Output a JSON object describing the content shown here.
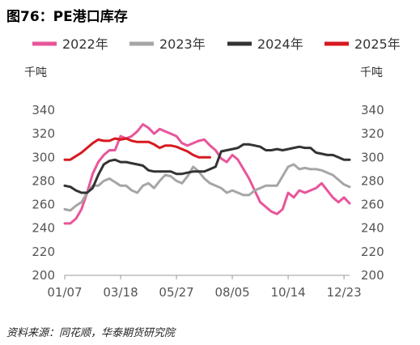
{
  "title": "图76：PE港口库存",
  "source": "资料来源：同花顺，华泰期货研究院",
  "chart_data": {
    "type": "line",
    "ylabel_left": "千吨",
    "ylabel_right": "千吨",
    "ylim": [
      200,
      340
    ],
    "y_ticks": [
      200,
      220,
      240,
      260,
      280,
      300,
      320,
      340
    ],
    "x_tick_labels": [
      "01/07",
      "03/18",
      "05/27",
      "08/05",
      "10/14",
      "12/23"
    ],
    "x_tick_positions": [
      0,
      10,
      20,
      30,
      40,
      50
    ],
    "legend_position": "top",
    "grid": false,
    "series": [
      {
        "name": "2022年",
        "color": "#e8559a",
        "values": [
          244,
          244,
          248,
          256,
          270,
          286,
          296,
          302,
          306,
          306,
          318,
          316,
          318,
          322,
          328,
          325,
          320,
          324,
          322,
          320,
          318,
          312,
          310,
          312,
          314,
          315,
          310,
          306,
          299,
          296,
          302,
          298,
          290,
          282,
          272,
          262,
          258,
          254,
          252,
          256,
          270,
          266,
          272,
          270,
          272,
          274,
          278,
          272,
          266,
          262,
          266,
          261
        ]
      },
      {
        "name": "2023年",
        "color": "#a6a6a6",
        "values": [
          256,
          255,
          259,
          262,
          270,
          276,
          276,
          280,
          282,
          279,
          276,
          276,
          272,
          270,
          276,
          278,
          274,
          280,
          285,
          284,
          280,
          278,
          284,
          292,
          288,
          282,
          278,
          276,
          274,
          270,
          272,
          270,
          268,
          268,
          272,
          274,
          276,
          276,
          276,
          284,
          292,
          294,
          290,
          291,
          290,
          290,
          289,
          287,
          285,
          281,
          277,
          275
        ]
      },
      {
        "name": "2024年",
        "color": "#333333",
        "values": [
          276,
          275,
          272,
          270,
          270,
          274,
          285,
          294,
          297,
          298,
          296,
          296,
          295,
          294,
          293,
          289,
          288,
          288,
          288,
          288,
          286,
          286,
          287,
          288,
          288,
          288,
          290,
          292,
          305,
          306,
          307,
          308,
          311,
          311,
          310,
          309,
          306,
          306,
          307,
          306,
          307,
          308,
          309,
          308,
          308,
          304,
          303,
          302,
          302,
          300,
          298,
          298
        ]
      },
      {
        "name": "2025年",
        "color": "#d7191f",
        "values": [
          298,
          298,
          301,
          304,
          308,
          312,
          315,
          314,
          314,
          316,
          315,
          316,
          314,
          313,
          313,
          313,
          311,
          308,
          310,
          310,
          309,
          307,
          305,
          302,
          300,
          300,
          300
        ]
      }
    ]
  }
}
